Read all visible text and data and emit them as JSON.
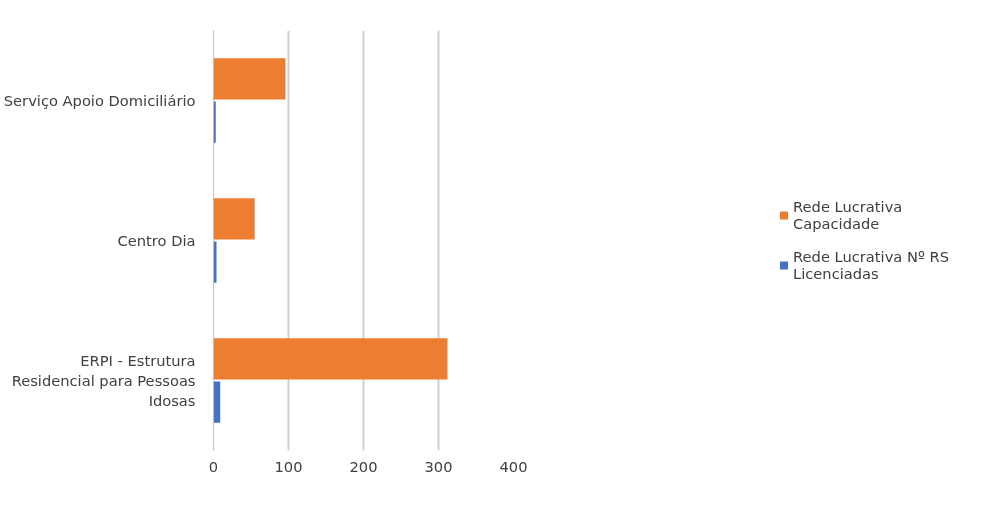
{
  "chart_data": {
    "type": "bar",
    "orientation": "horizontal",
    "categories": [
      "Serviço Apoio Domiciliário",
      "Centro Dia",
      "ERPI - Estrutura Residencial para Pessoas Idosas"
    ],
    "series": [
      {
        "name": "Rede Lucrativa Capacidade",
        "color": "#ed7d31",
        "values": [
          96,
          55,
          312
        ]
      },
      {
        "name": "Rede Lucrativa Nº RS Licenciadas",
        "color": "#4472c4",
        "values": [
          3,
          4,
          9
        ]
      }
    ],
    "xlim": [
      0,
      400
    ],
    "xticks": [
      0,
      100,
      200,
      300,
      400
    ],
    "grid": "x",
    "legend": "right"
  }
}
